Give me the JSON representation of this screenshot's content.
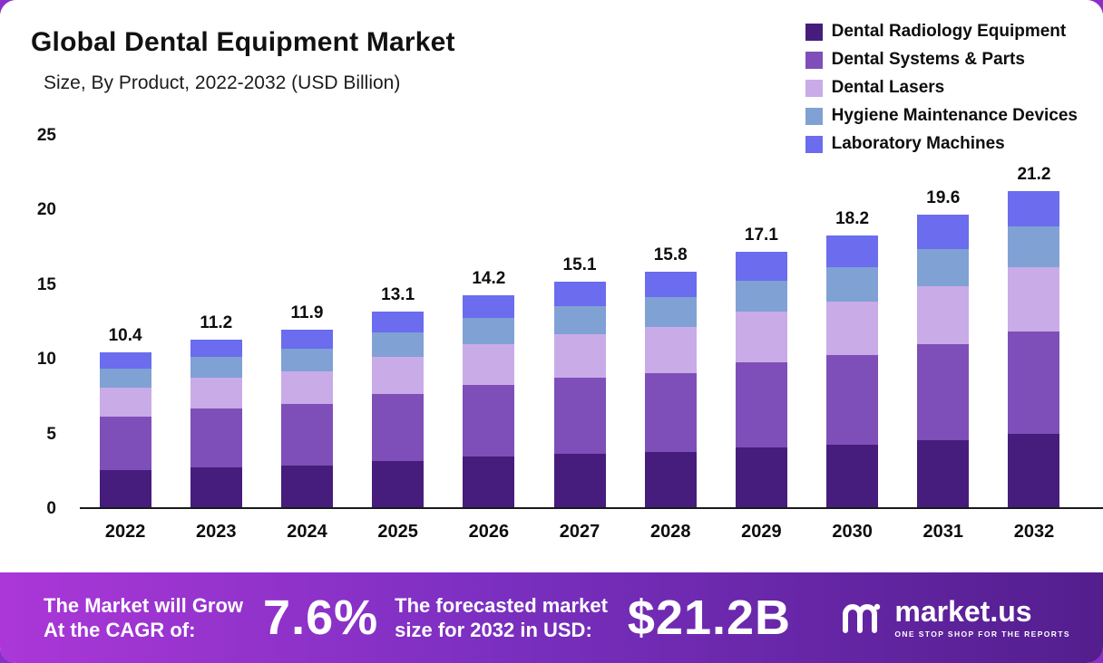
{
  "header": {
    "title": "Global Dental Equipment Market",
    "subtitle": "Size, By Product, 2022-2032 (USD Billion)"
  },
  "chart_data": {
    "type": "bar",
    "subtype": "stacked",
    "title": "Global Dental Equipment Market Size, By Product, 2022-2032 (USD Billion)",
    "categories": [
      "2022",
      "2023",
      "2024",
      "2025",
      "2026",
      "2027",
      "2028",
      "2029",
      "2030",
      "2031",
      "2032"
    ],
    "totals": [
      10.4,
      11.2,
      11.9,
      13.1,
      14.2,
      15.1,
      15.8,
      17.1,
      18.2,
      19.6,
      21.2
    ],
    "series": [
      {
        "name": "Dental Radiology Equipment",
        "color": "#461d7c",
        "values": [
          2.5,
          2.7,
          2.8,
          3.1,
          3.4,
          3.6,
          3.7,
          4.0,
          4.2,
          4.5,
          4.9
        ]
      },
      {
        "name": "Dental Systems & Parts",
        "color": "#7e4fb8",
        "values": [
          3.6,
          3.9,
          4.1,
          4.5,
          4.8,
          5.1,
          5.3,
          5.7,
          6.0,
          6.4,
          6.9
        ]
      },
      {
        "name": "Dental Lasers",
        "color": "#c9abe8",
        "values": [
          1.9,
          2.1,
          2.2,
          2.5,
          2.7,
          2.9,
          3.1,
          3.4,
          3.6,
          3.9,
          4.3
        ]
      },
      {
        "name": "Hygiene Maintenance Devices",
        "color": "#80a1d4",
        "values": [
          1.3,
          1.4,
          1.5,
          1.6,
          1.8,
          1.9,
          2.0,
          2.1,
          2.3,
          2.5,
          2.7
        ]
      },
      {
        "name": "Laboratory Machines",
        "color": "#6b6cee",
        "values": [
          1.1,
          1.1,
          1.3,
          1.4,
          1.5,
          1.6,
          1.7,
          1.9,
          2.1,
          2.3,
          2.4
        ]
      }
    ],
    "ylim": [
      0,
      25
    ],
    "yticks": [
      0,
      5,
      10,
      15,
      20,
      25
    ],
    "grid": false,
    "legend_position": "top-right"
  },
  "banner": {
    "grow_line1": "The Market will Grow",
    "grow_line2": "At the CAGR of:",
    "cagr_value": "7.6%",
    "forecast_line1": "The forecasted market",
    "forecast_line2": "size for 2032 in USD:",
    "forecast_value": "$21.2B",
    "brand": "market.us",
    "tagline": "ONE STOP SHOP FOR THE REPORTS"
  },
  "colors": {
    "frame_background": "#8b2fc9",
    "card_background": "#ffffff",
    "banner_gradient_left": "#ab37d8",
    "banner_gradient_right": "#531e8e",
    "axis_line": "#1a1a1a",
    "text": "#0d0d0d"
  }
}
